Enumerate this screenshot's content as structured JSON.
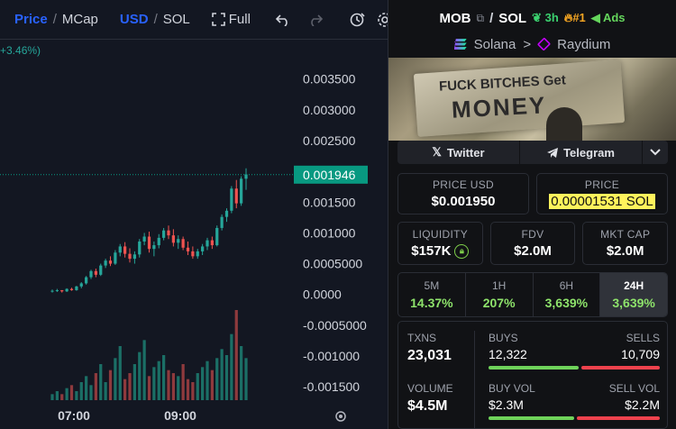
{
  "toolbar": {
    "price_label": "Price",
    "mcap_label": "MCap",
    "usd_label": "USD",
    "sol_label": "SOL",
    "full_label": "Full",
    "icons": [
      "fullscreen-icon",
      "undo-icon",
      "redo-icon",
      "alert-clock-icon",
      "settings-gear-icon"
    ]
  },
  "chart_data": {
    "type": "candlestick",
    "pair_change_label": "+3.46%)",
    "y_ticks": [
      "0.003500",
      "0.003000",
      "0.002500",
      "0.002000",
      "0.001500",
      "0.001000",
      "0.0005000",
      "0.0000",
      "-0.0005000",
      "-0.001000",
      "-0.001500"
    ],
    "ylim": [
      -0.0016,
      0.0037
    ],
    "x_ticks": [
      "07:00",
      "09:00"
    ],
    "current_price_label": "0.001946",
    "current_price": 0.001946,
    "colors": {
      "up": "#26a69a",
      "down": "#ef5350",
      "price_tag": "#089981"
    },
    "candles": [
      [
        5e-05,
        8e-05,
        3e-05,
        6e-05
      ],
      [
        6e-05,
        9e-05,
        4e-05,
        7e-05
      ],
      [
        7e-05,
        7e-05,
        3e-05,
        5e-05
      ],
      [
        5e-05,
        0.0001,
        4e-05,
        9e-05
      ],
      [
        9e-05,
        0.00011,
        6e-05,
        7e-05
      ],
      [
        7e-05,
        0.00014,
        6e-05,
        0.00013
      ],
      [
        0.00013,
        0.0002,
        0.0001,
        0.00018
      ],
      [
        0.00018,
        0.0003,
        0.00016,
        0.00028
      ],
      [
        0.00028,
        0.0004,
        0.00025,
        0.00038
      ],
      [
        0.00038,
        0.00042,
        0.00028,
        0.00032
      ],
      [
        0.00032,
        0.0005,
        0.0003,
        0.00047
      ],
      [
        0.00047,
        0.00058,
        0.00043,
        0.00055
      ],
      [
        0.00055,
        0.00062,
        0.00046,
        0.0005
      ],
      [
        0.0005,
        0.00072,
        0.00048,
        0.00068
      ],
      [
        0.00068,
        0.00082,
        0.00062,
        0.00078
      ],
      [
        0.00078,
        0.00085,
        0.0006,
        0.00066
      ],
      [
        0.00066,
        0.00075,
        0.00052,
        0.00058
      ],
      [
        0.00058,
        0.0007,
        0.0005,
        0.00065
      ],
      [
        0.00065,
        0.0009,
        0.0006,
        0.00086
      ],
      [
        0.00086,
        0.001,
        0.0008,
        0.00094
      ],
      [
        0.00094,
        0.00102,
        0.00068,
        0.00074
      ],
      [
        0.00074,
        0.00086,
        0.00062,
        0.0008
      ],
      [
        0.0008,
        0.00098,
        0.00075,
        0.00092
      ],
      [
        0.00092,
        0.00108,
        0.00088,
        0.00104
      ],
      [
        0.00104,
        0.00112,
        0.0009,
        0.00096
      ],
      [
        0.00096,
        0.00106,
        0.00078,
        0.00084
      ],
      [
        0.00084,
        0.00096,
        0.00074,
        0.0009
      ],
      [
        0.0009,
        0.00094,
        0.00072,
        0.00076
      ],
      [
        0.00076,
        0.00086,
        0.00064,
        0.0007
      ],
      [
        0.0007,
        0.00078,
        0.00058,
        0.00062
      ],
      [
        0.00062,
        0.00074,
        0.00058,
        0.0007
      ],
      [
        0.0007,
        0.00082,
        0.00064,
        0.00078
      ],
      [
        0.00078,
        0.00092,
        0.00072,
        0.00088
      ],
      [
        0.00088,
        0.00094,
        0.00074,
        0.0008
      ],
      [
        0.0008,
        0.00112,
        0.00078,
        0.00108
      ],
      [
        0.00108,
        0.0013,
        0.00104,
        0.00126
      ],
      [
        0.00126,
        0.0014,
        0.00118,
        0.00136
      ],
      [
        0.00136,
        0.00176,
        0.00132,
        0.00172
      ],
      [
        0.00172,
        0.00186,
        0.0014,
        0.00148
      ],
      [
        0.00148,
        0.00192,
        0.00144,
        0.00188
      ],
      [
        0.00188,
        0.00205,
        0.0017,
        0.00195
      ]
    ],
    "volumes": [
      2,
      3,
      2,
      4,
      5,
      3,
      6,
      8,
      5,
      9,
      12,
      6,
      10,
      14,
      18,
      7,
      9,
      12,
      16,
      20,
      8,
      11,
      13,
      15,
      10,
      9,
      8,
      12,
      7,
      6,
      9,
      11,
      13,
      10,
      14,
      17,
      15,
      22,
      30,
      18,
      14
    ]
  },
  "pair": {
    "base": "MOB",
    "quote": "SOL",
    "separator": "/",
    "age": "3h",
    "rank": "#1",
    "ads": "Ads",
    "chain": "Solana",
    "dex": "Raydium",
    "chain_sep": ">"
  },
  "banner": {
    "scrawl_top": "FUCK BITCHES Get",
    "scrawl_main": "MONEY"
  },
  "social": {
    "twitter": "Twitter",
    "telegram": "Telegram"
  },
  "prices": {
    "usd_label": "PRICE USD",
    "usd_value": "$0.001950",
    "native_label": "PRICE",
    "native_value": "0.00001531 SOL"
  },
  "metrics": {
    "liquidity_label": "LIQUIDITY",
    "liquidity_value": "$157K",
    "fdv_label": "FDV",
    "fdv_value": "$2.0M",
    "mcap_label": "MKT CAP",
    "mcap_value": "$2.0M"
  },
  "timeframes": [
    {
      "label": "5M",
      "value": "14.37%"
    },
    {
      "label": "1H",
      "value": "207%"
    },
    {
      "label": "6H",
      "value": "3,639%"
    },
    {
      "label": "24H",
      "value": "3,639%"
    }
  ],
  "txns": {
    "txns_label": "TXNS",
    "txns_value": "23,031",
    "buys_label": "BUYS",
    "buys_value": "12,322",
    "sells_label": "SELLS",
    "sells_value": "10,709",
    "buys_share": 0.535,
    "volume_label": "VOLUME",
    "volume_value": "$4.5M",
    "buy_vol_label": "BUY VOL",
    "buy_vol_value": "$2.3M",
    "sell_vol_label": "SELL VOL",
    "sell_vol_value": "$2.2M",
    "buy_vol_share": 0.51
  }
}
